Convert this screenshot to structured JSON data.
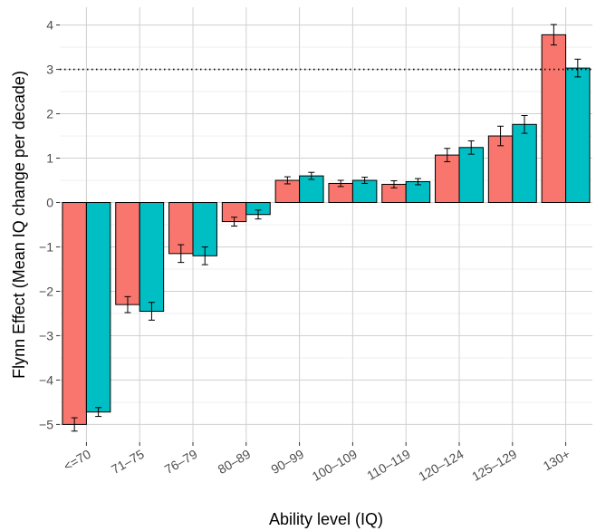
{
  "chart_data": {
    "type": "bar",
    "title": "",
    "xlabel": "Ability level (IQ)",
    "ylabel": "Flynn Effect (Mean IQ change per decade)",
    "ylim": [
      -5.4,
      4.4
    ],
    "yticks": [
      -5,
      -4,
      -3,
      -2,
      -1,
      0,
      1,
      2,
      3,
      4
    ],
    "ytick_labels": [
      "−5",
      "−4",
      "−3",
      "−2",
      "−1",
      "0",
      "1",
      "2",
      "3",
      "4"
    ],
    "categories": [
      "<=70",
      "71–75",
      "76–79",
      "80–89",
      "90–99",
      "100–109",
      "110–119",
      "120–124",
      "125–129",
      "130+"
    ],
    "grid": true,
    "legend": "none",
    "reference_line": {
      "y": 3,
      "style": "dotted"
    },
    "series": [
      {
        "color": "#F8766D",
        "values": [
          -5.0,
          -2.3,
          -1.15,
          -0.43,
          0.5,
          0.43,
          0.41,
          1.07,
          1.5,
          3.78
        ],
        "error": [
          0.15,
          0.18,
          0.2,
          0.1,
          0.08,
          0.07,
          0.08,
          0.15,
          0.22,
          0.23
        ]
      },
      {
        "color": "#00BFC4",
        "values": [
          -4.72,
          -2.45,
          -1.2,
          -0.27,
          0.6,
          0.5,
          0.47,
          1.24,
          1.76,
          3.03
        ],
        "error": [
          0.1,
          0.2,
          0.2,
          0.1,
          0.08,
          0.07,
          0.07,
          0.15,
          0.2,
          0.2
        ]
      }
    ]
  }
}
